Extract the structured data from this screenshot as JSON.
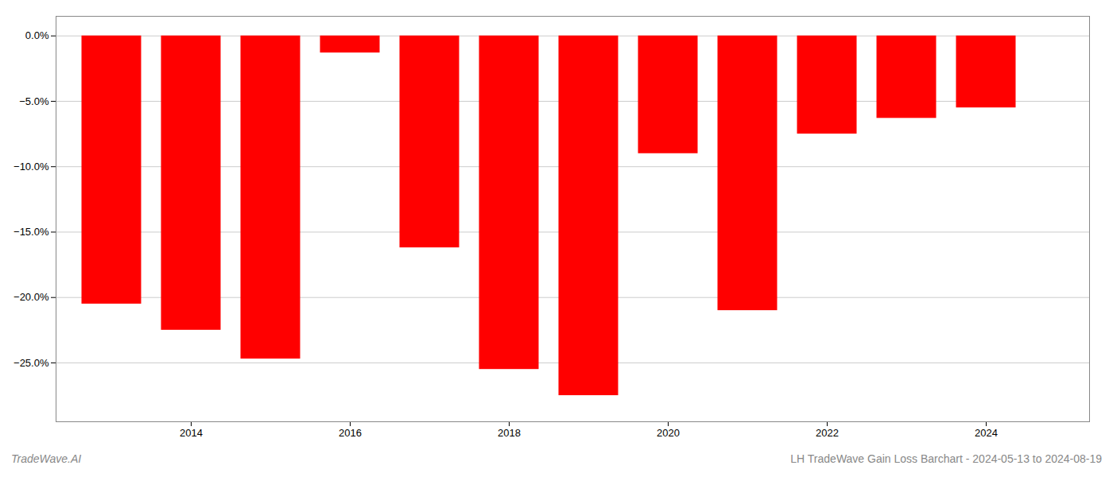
{
  "chart_data": {
    "type": "bar",
    "x": [
      2013,
      2014,
      2015,
      2016,
      2017,
      2018,
      2019,
      2020,
      2021,
      2022,
      2023,
      2024
    ],
    "values": [
      -20.5,
      -22.5,
      -24.7,
      -1.3,
      -16.2,
      -25.5,
      -27.5,
      -9.0,
      -21.0,
      -7.5,
      -6.3,
      -5.5
    ],
    "color": "#ff0000",
    "xlim": [
      2012.3,
      2025.3
    ],
    "xticks": [
      2014,
      2016,
      2018,
      2020,
      2022,
      2024
    ],
    "ylim": [
      -29.5,
      1.5
    ],
    "yticks": [
      {
        "value": 0.0,
        "label": "0.0%"
      },
      {
        "value": -5.0,
        "label": "−5.0%"
      },
      {
        "value": -10.0,
        "label": "−10.0%"
      },
      {
        "value": -15.0,
        "label": "−15.0%"
      },
      {
        "value": -20.0,
        "label": "−20.0%"
      },
      {
        "value": -25.0,
        "label": "−25.0%"
      }
    ],
    "grid": true,
    "annotations": [
      "TradeWave.AI",
      "LH TradeWave Gain Loss Barchart - 2024-05-13 to 2024-08-19"
    ]
  }
}
